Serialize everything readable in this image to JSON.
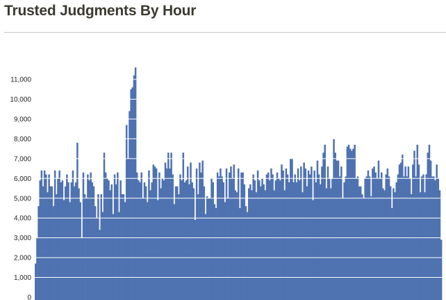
{
  "page": {
    "title": "Trusted Judgments By Hour"
  },
  "chart_data": {
    "type": "bar",
    "title": "Trusted Judgments By Hour",
    "xlabel": "",
    "ylabel": "",
    "ylim": [
      0,
      11600
    ],
    "grid": true,
    "legend": "none",
    "bar_color": "#4f72b0",
    "grid_color": "#ffffff",
    "y_ticks": [
      0,
      1000,
      2000,
      3000,
      4000,
      5000,
      6000,
      7000,
      8000,
      9000,
      10000,
      11000
    ],
    "y_tick_labels": [
      "0",
      "1,000",
      "2,000",
      "3,000",
      "4,000",
      "5,000",
      "6,000",
      "7,000",
      "8,000",
      "9,000",
      "10,000",
      "11,000"
    ],
    "values": [
      1700,
      3000,
      4600,
      5900,
      6400,
      5600,
      6400,
      6200,
      5300,
      6200,
      5600,
      5600,
      4600,
      6400,
      5200,
      6000,
      6400,
      5800,
      5900,
      4900,
      5600,
      6200,
      5800,
      4800,
      5800,
      6400,
      5600,
      5800,
      7800,
      5500,
      4800,
      3000,
      6300,
      5200,
      5000,
      6200,
      5900,
      6300,
      5800,
      5600,
      4600,
      4000,
      5200,
      3400,
      5200,
      4300,
      7300,
      6300,
      6000,
      5900,
      5400,
      5700,
      4200,
      6200,
      5700,
      6300,
      4300,
      5900,
      5200,
      5200,
      4800,
      8700,
      7000,
      9400,
      10500,
      10600,
      11200,
      11600,
      6300,
      5900,
      5800,
      6300,
      5000,
      5800,
      5600,
      4800,
      6400,
      5400,
      5800,
      6700,
      6600,
      6500,
      4900,
      6300,
      5500,
      6000,
      5900,
      6800,
      6500,
      7300,
      6500,
      7300,
      6200,
      4700,
      5600,
      5600,
      5200,
      6200,
      5900,
      7300,
      5800,
      5900,
      6600,
      5700,
      6800,
      5800,
      5500,
      3900,
      6500,
      5200,
      6800,
      6300,
      6900,
      5600,
      4200,
      5100,
      5000,
      5000,
      6000,
      5800,
      4700,
      4500,
      6300,
      6100,
      6500,
      6100,
      5800,
      4800,
      6500,
      5000,
      6300,
      6600,
      6000,
      6700,
      5400,
      5300,
      6500,
      4500,
      6300,
      6300,
      5700,
      4600,
      4300,
      5500,
      5700,
      5400,
      6200,
      5900,
      5300,
      6400,
      5900,
      5600,
      6000,
      5700,
      5400,
      6200,
      6300,
      5900,
      6500,
      6200,
      5400,
      5900,
      6300,
      6000,
      5900,
      6700,
      6400,
      5400,
      6500,
      6200,
      5800,
      7000,
      7000,
      5800,
      6200,
      5800,
      6500,
      5900,
      6600,
      5300,
      6800,
      6500,
      5600,
      6400,
      6200,
      6600,
      4900,
      6400,
      5800,
      6900,
      6200,
      5700,
      6600,
      7300,
      7700,
      5500,
      6600,
      6000,
      5500,
      6000,
      8000,
      7300,
      6900,
      6900,
      6100,
      6600,
      5000,
      5800,
      6100,
      7600,
      7700,
      7500,
      7400,
      7500,
      7700,
      6000,
      6100,
      5600,
      5600,
      5200,
      5000,
      6000,
      6100,
      6400,
      6100,
      5100,
      6500,
      6600,
      6300,
      6000,
      6900,
      6000,
      6300,
      5500,
      5400,
      6200,
      6500,
      6100,
      5600,
      4500,
      5500,
      5300,
      5800,
      6200,
      6700,
      6800,
      7200,
      6100,
      6600,
      6100,
      6600,
      6000,
      5200,
      6700,
      7400,
      6100,
      7700,
      6700,
      5300,
      6100,
      6200,
      5300,
      6200,
      7300,
      7700,
      6900,
      6100,
      6100,
      5900,
      6700,
      6000,
      5400,
      2900
    ]
  }
}
